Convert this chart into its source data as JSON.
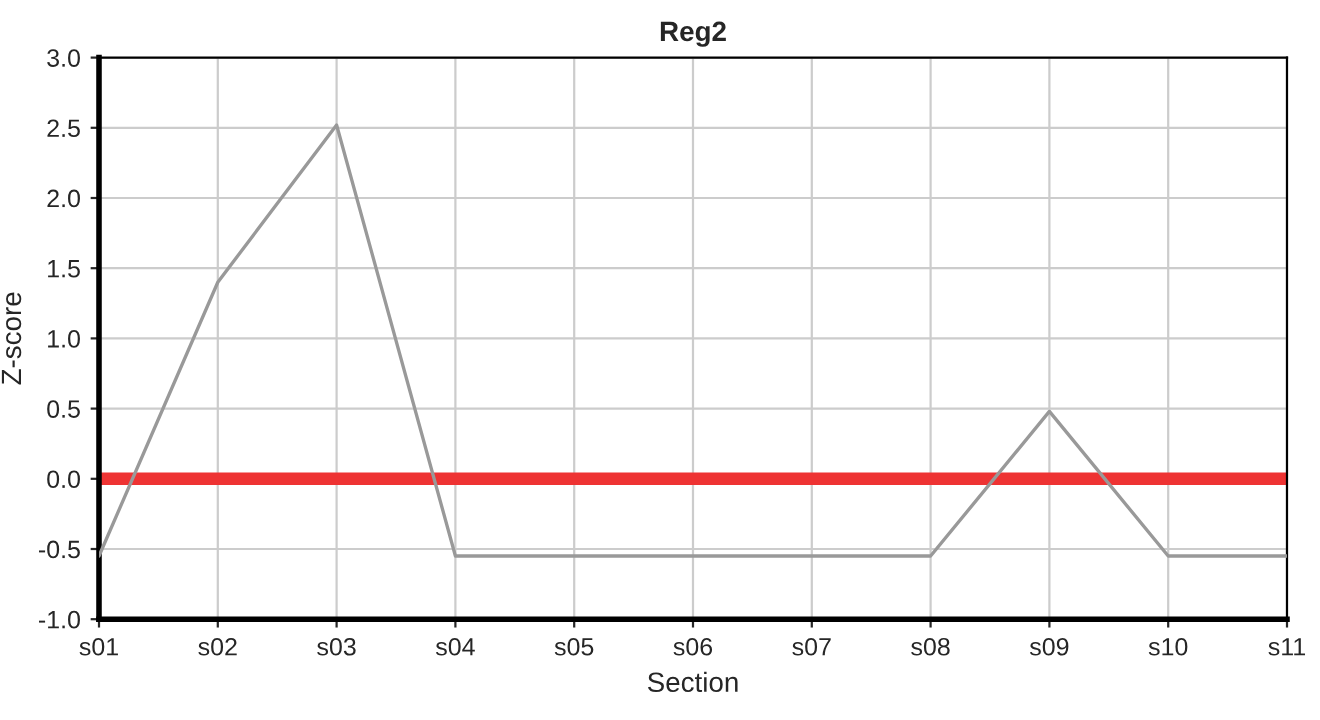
{
  "chart_data": {
    "type": "line",
    "title": "Reg2",
    "xlabel": "Section",
    "ylabel": "Z-score",
    "categories": [
      "s01",
      "s02",
      "s03",
      "s04",
      "s05",
      "s06",
      "s07",
      "s08",
      "s09",
      "s10",
      "s11"
    ],
    "series": [
      {
        "color": "#999999",
        "values": [
          -0.55,
          1.4,
          2.52,
          -0.55,
          -0.55,
          -0.55,
          -0.55,
          -0.55,
          0.48,
          -0.55,
          -0.55
        ]
      }
    ],
    "ylim": [
      -1.0,
      3.0
    ],
    "yticks": [
      {
        "value": -1.0,
        "label": "-1.0"
      },
      {
        "value": -0.5,
        "label": "-0.5"
      },
      {
        "value": 0.0,
        "label": "0.0"
      },
      {
        "value": 0.5,
        "label": "0.5"
      },
      {
        "value": 1.0,
        "label": "1.0"
      },
      {
        "value": 1.5,
        "label": "1.5"
      },
      {
        "value": 2.0,
        "label": "2.0"
      },
      {
        "value": 2.5,
        "label": "2.5"
      },
      {
        "value": 3.0,
        "label": "3.0"
      }
    ],
    "ref_lines": [
      {
        "axis": "y",
        "value": 0,
        "color": "#ee3333"
      }
    ],
    "grid": true,
    "marker": "none",
    "line_style": "solid"
  }
}
